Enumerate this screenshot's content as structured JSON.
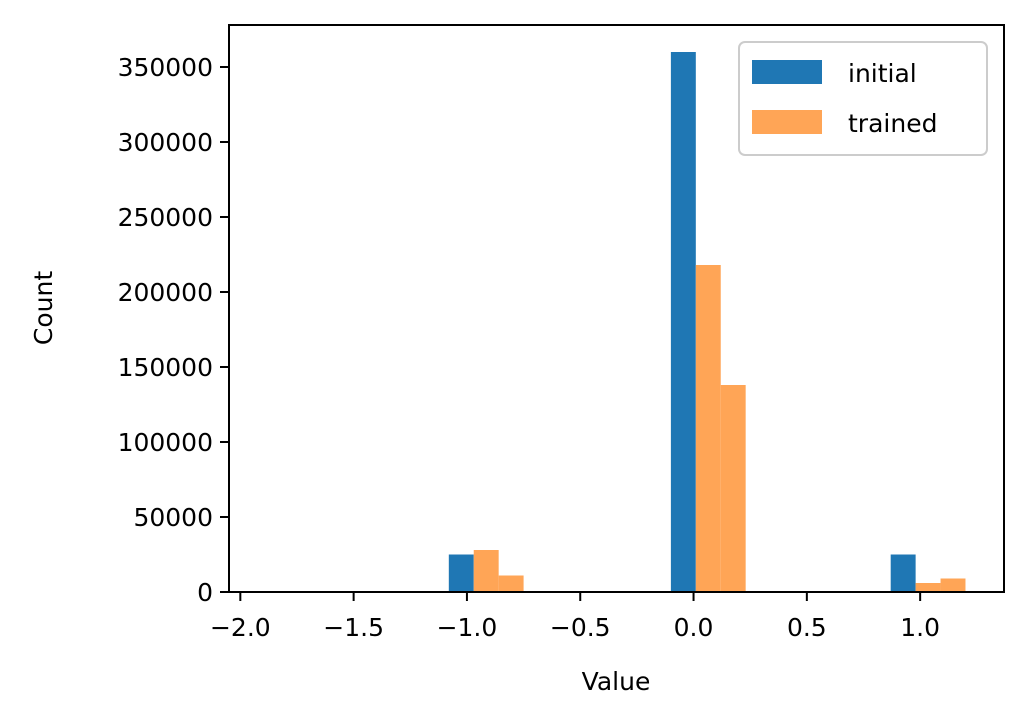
{
  "chart_data": {
    "type": "bar",
    "xlabel": "Value",
    "ylabel": "Count",
    "xlim": [
      -2.05,
      1.37
    ],
    "ylim": [
      0,
      378000
    ],
    "x_ticks": [
      -2.0,
      -1.5,
      -1.0,
      -0.5,
      0.0,
      0.5,
      1.0
    ],
    "x_tick_labels": [
      "−2.0",
      "−1.5",
      "−1.0",
      "−0.5",
      "0.0",
      "0.5",
      "1.0"
    ],
    "y_ticks": [
      0,
      50000,
      100000,
      150000,
      200000,
      250000,
      300000,
      350000
    ],
    "y_tick_labels": [
      "0",
      "50000",
      "100000",
      "150000",
      "200000",
      "250000",
      "300000",
      "350000"
    ],
    "grid": false,
    "legend": "top-right",
    "series": [
      {
        "name": "initial",
        "color": "#1f77b4",
        "bins": [
          {
            "x0": -1.08,
            "x1": -0.97,
            "count": 25000
          },
          {
            "x0": -0.1,
            "x1": 0.01,
            "count": 360000
          },
          {
            "x0": 0.87,
            "x1": 0.98,
            "count": 25000
          }
        ]
      },
      {
        "name": "trained",
        "color": "#ffa556",
        "bins": [
          {
            "x0": -0.97,
            "x1": -0.86,
            "count": 28000
          },
          {
            "x0": -0.86,
            "x1": -0.75,
            "count": 11000
          },
          {
            "x0": 0.01,
            "x1": 0.12,
            "count": 218000
          },
          {
            "x0": 0.12,
            "x1": 0.23,
            "count": 138000
          },
          {
            "x0": 0.98,
            "x1": 1.09,
            "count": 6000
          },
          {
            "x0": 1.09,
            "x1": 1.2,
            "count": 9000
          }
        ]
      }
    ]
  }
}
